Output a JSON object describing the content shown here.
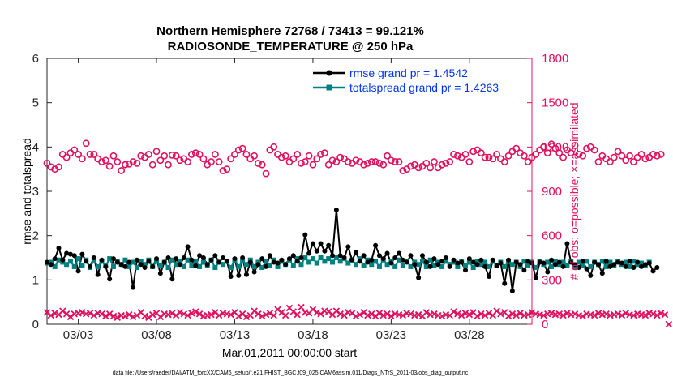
{
  "figure": {
    "title_line1": "Northern Hemisphere 72768 / 73413 = 99.121%",
    "title_line2": "RADIOSONDE_TEMPERATURE @ 250 hPa",
    "x_start_label": "Mar.01,2011 00:00:00 start",
    "footer": "data file: /Users/raeder/DAI/ATM_forcXX/CAM6_setup/f.e21.FHIST_BGC.f09_025.CAM6assim.011/Diags_NTrS_2011-03/obs_diag_output.nc"
  },
  "chart_data": {
    "type": "line",
    "xlabel": "",
    "ylabel": "rmse and totalspread",
    "ylabel_right": "# of obs: o=possible; ×=assimilated",
    "xlim": [
      1.0,
      32.0
    ],
    "ylim": [
      0,
      6
    ],
    "ylim_right": [
      0,
      1800
    ],
    "x_ticks": [
      3,
      8,
      13,
      18,
      23,
      28
    ],
    "x_tick_labels": [
      "03/03",
      "03/08",
      "03/13",
      "03/18",
      "03/23",
      "03/28"
    ],
    "y_ticks": [
      0,
      1,
      2,
      3,
      4,
      5,
      6
    ],
    "y_ticks_right": [
      0,
      300,
      600,
      900,
      1200,
      1500,
      1800
    ],
    "grid": false,
    "legend_position": "top-right",
    "colors": {
      "rmse": "#000000",
      "totalspread": "#008080",
      "obs": "#e0115f",
      "legend_text": "#0033ff"
    },
    "x_step_days": 0.25,
    "series": [
      {
        "name": "rmse grand pr = 1.4542",
        "axis": "left",
        "values": [
          1.4,
          1.35,
          1.48,
          1.72,
          1.45,
          1.6,
          1.58,
          1.55,
          1.2,
          1.58,
          1.42,
          1.3,
          1.5,
          1.12,
          1.45,
          1.3,
          1.02,
          1.48,
          1.4,
          1.35,
          1.3,
          1.4,
          0.83,
          1.45,
          1.35,
          1.28,
          1.42,
          1.3,
          1.48,
          1.15,
          1.4,
          1.5,
          1.02,
          1.48,
          1.35,
          1.5,
          1.75,
          1.45,
          1.32,
          1.55,
          1.5,
          1.35,
          1.45,
          1.55,
          1.4,
          1.5,
          1.42,
          1.08,
          1.48,
          1.1,
          1.5,
          1.12,
          1.4,
          1.18,
          1.35,
          1.48,
          1.3,
          1.55,
          1.4,
          1.38,
          1.45,
          1.35,
          1.48,
          1.55,
          1.42,
          1.5,
          2.02,
          1.6,
          1.82,
          1.65,
          1.82,
          1.65,
          1.78,
          1.55,
          2.58,
          1.55,
          1.5,
          1.75,
          1.45,
          1.62,
          1.42,
          1.55,
          1.4,
          1.45,
          1.78,
          1.55,
          1.48,
          1.6,
          1.38,
          1.5,
          1.6,
          1.45,
          1.4,
          1.55,
          1.35,
          1.05,
          1.55,
          1.4,
          1.3,
          1.48,
          1.35,
          1.42,
          1.5,
          1.3,
          1.45,
          1.38,
          1.4,
          1.22,
          1.48,
          1.4,
          1.35,
          1.45,
          1.3,
          1.08,
          1.45,
          1.32,
          1.38,
          0.92,
          1.45,
          0.75,
          1.4,
          1.35,
          1.22,
          1.42,
          1.38,
          1.05,
          1.4,
          1.38,
          1.18,
          1.45,
          1.35,
          1.4,
          1.3,
          1.82,
          1.4,
          1.35,
          1.28,
          1.42,
          1.25,
          1.1,
          1.4,
          1.35,
          1.15,
          1.42,
          1.3,
          1.35,
          1.4,
          1.38,
          1.3,
          1.42,
          1.28,
          1.4,
          1.3,
          1.35,
          1.38,
          1.2,
          1.28
        ]
      },
      {
        "name": "totalspread grand pr = 1.4263",
        "axis": "left",
        "values": [
          1.38,
          1.4,
          1.3,
          1.45,
          1.4,
          1.35,
          1.42,
          1.3,
          1.48,
          1.32,
          1.45,
          1.28,
          1.45,
          1.3,
          1.42,
          1.32,
          1.48,
          1.3,
          1.42,
          1.35,
          1.45,
          1.3,
          1.4,
          1.28,
          1.42,
          1.35,
          1.45,
          1.3,
          1.42,
          1.32,
          1.4,
          1.28,
          1.45,
          1.35,
          1.42,
          1.3,
          1.45,
          1.32,
          1.42,
          1.3,
          1.4,
          1.32,
          1.45,
          1.28,
          1.4,
          1.35,
          1.42,
          1.28,
          1.45,
          1.3,
          1.42,
          1.35,
          1.45,
          1.3,
          1.4,
          1.28,
          1.42,
          1.32,
          1.45,
          1.3,
          1.42,
          1.35,
          1.45,
          1.32,
          1.48,
          1.35,
          1.5,
          1.4,
          1.48,
          1.38,
          1.5,
          1.42,
          1.48,
          1.4,
          1.5,
          1.42,
          1.48,
          1.38,
          1.45,
          1.35,
          1.48,
          1.32,
          1.45,
          1.35,
          1.42,
          1.3,
          1.45,
          1.35,
          1.42,
          1.3,
          1.45,
          1.32,
          1.42,
          1.3,
          1.4,
          1.35,
          1.42,
          1.3,
          1.45,
          1.32,
          1.4,
          1.3,
          1.42,
          1.35,
          1.4,
          1.3,
          1.42,
          1.32,
          1.4,
          1.28,
          1.42,
          1.35,
          1.4,
          1.3,
          1.42,
          1.32,
          1.4,
          1.3,
          1.42,
          1.35,
          1.4,
          1.3,
          1.42,
          1.32,
          1.4,
          1.28,
          1.42,
          1.35,
          1.4,
          1.3,
          1.42,
          1.35,
          1.4,
          1.32,
          1.42,
          1.3,
          1.4,
          1.32,
          1.42,
          1.3,
          1.4,
          1.35,
          1.42,
          1.3,
          1.4,
          1.32,
          1.42,
          1.35,
          1.4,
          1.3,
          1.42,
          1.35,
          1.38,
          1.32,
          1.4
        ]
      },
      {
        "name": "possible",
        "axis": "right",
        "marker": "o",
        "values": [
          1090,
          1065,
          1050,
          1065,
          1150,
          1130,
          1160,
          1180,
          1150,
          1120,
          1225,
          1150,
          1150,
          1120,
          1100,
          1110,
          1070,
          1140,
          1100,
          1040,
          1080,
          1085,
          1100,
          1090,
          1140,
          1130,
          1150,
          1080,
          1170,
          1110,
          1140,
          1080,
          1145,
          1140,
          1110,
          1120,
          1100,
          1150,
          1160,
          1150,
          1120,
          1080,
          1100,
          1150,
          1100,
          1040,
          1050,
          1120,
          1150,
          1180,
          1190,
          1150,
          1120,
          1140,
          1090,
          1080,
          1020,
          1180,
          1200,
          1150,
          1130,
          1140,
          1100,
          1120,
          1150,
          1090,
          1100,
          1140,
          1080,
          1120,
          1150,
          1160,
          1080,
          1110,
          1100,
          1130,
          1120,
          1100,
          1090,
          1110,
          1100,
          1080,
          1090,
          1100,
          1100,
          1090,
          1080,
          1140,
          1110,
          1100,
          1100,
          1040,
          1050,
          1070,
          1080,
          1060,
          1070,
          1090,
          1060,
          1100,
          1060,
          1080,
          1090,
          1100,
          1150,
          1140,
          1130,
          1150,
          1100,
          1170,
          1180,
          1160,
          1130,
          1130,
          1120,
          1150,
          1120,
          1100,
          1140,
          1170,
          1190,
          1160,
          1140,
          1100,
          1130,
          1150,
          1180,
          1200,
          1160,
          1220,
          1190,
          1160,
          1130,
          1180,
          1160,
          1210,
          1150,
          1140,
          1190,
          1200,
          1180,
          1100,
          1140,
          1120,
          1100,
          1130,
          1170,
          1140,
          1110,
          1140,
          1100,
          1130,
          1150,
          1120,
          1130,
          1150,
          1140,
          1150
        ]
      },
      {
        "name": "assimilated",
        "axis": "right",
        "marker": "x",
        "values": [
          80,
          60,
          75,
          65,
          90,
          70,
          50,
          70,
          75,
          80,
          70,
          75,
          60,
          75,
          70,
          55,
          70,
          55,
          45,
          60,
          55,
          65,
          50,
          60,
          80,
          55,
          45,
          65,
          75,
          50,
          70,
          65,
          75,
          60,
          80,
          70,
          60,
          75,
          85,
          70,
          55,
          60,
          65,
          80,
          60,
          75,
          70,
          65,
          80,
          55,
          70,
          50,
          60,
          90,
          70,
          55,
          65,
          75,
          60,
          100,
          80,
          60,
          110,
          85,
          65,
          115,
          80,
          75,
          100,
          80,
          70,
          90,
          85,
          65,
          90,
          70,
          60,
          80,
          75,
          55,
          65,
          80,
          60,
          70,
          55,
          75,
          60,
          70,
          55,
          70,
          65,
          60,
          75,
          70,
          60,
          65,
          55,
          80,
          65,
          70,
          60,
          55,
          65,
          60,
          85,
          70,
          60,
          75,
          65,
          80,
          55,
          70,
          60,
          75,
          60,
          90,
          70,
          80,
          55,
          70,
          60,
          75,
          60,
          65,
          80,
          70,
          65,
          60,
          70,
          75,
          65,
          70,
          60,
          75,
          65,
          70,
          60,
          55,
          70,
          65,
          60,
          75,
          65,
          70,
          60,
          65,
          70,
          60,
          75,
          65,
          60,
          70,
          65,
          60,
          75,
          70,
          60,
          75,
          65,
          0
        ]
      }
    ]
  }
}
